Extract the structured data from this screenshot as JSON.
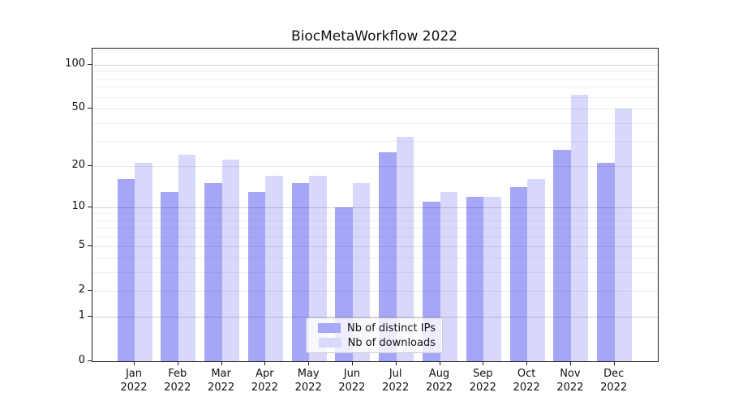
{
  "title": "BiocMetaWorkflow 2022",
  "x_year": "2022",
  "legend": {
    "items": [
      {
        "label": "Nb of distinct IPs",
        "color": "#a8a8f6"
      },
      {
        "label": "Nb of downloads",
        "color": "#d9d9fa"
      }
    ]
  },
  "chart_data": {
    "type": "bar",
    "title": "BiocMetaWorkflow 2022",
    "categories": [
      "Jan 2022",
      "Feb 2022",
      "Mar 2022",
      "Apr 2022",
      "May 2022",
      "Jun 2022",
      "Jul 2022",
      "Aug 2022",
      "Sep 2022",
      "Oct 2022",
      "Nov 2022",
      "Dec 2022"
    ],
    "month_labels": [
      "Jan",
      "Feb",
      "Mar",
      "Apr",
      "May",
      "Jun",
      "Jul",
      "Aug",
      "Sep",
      "Oct",
      "Nov",
      "Dec"
    ],
    "series": [
      {
        "name": "Nb of distinct IPs",
        "swatch_color": "#a8a8f6",
        "fill": "rgba(0,0,230,0.35)",
        "values": [
          16,
          13,
          15,
          13,
          15,
          10,
          25,
          11,
          12,
          14,
          26,
          21
        ]
      },
      {
        "name": "Nb of downloads",
        "swatch_color": "#d9d9fa",
        "fill": "rgba(10,10,225,0.16)",
        "values": [
          21,
          24,
          22,
          17,
          17,
          15,
          32,
          13,
          12,
          16,
          62,
          50
        ]
      }
    ],
    "yscale": "log1p",
    "ylim": [
      0,
      130
    ],
    "yticks": [
      0,
      1,
      2,
      5,
      10,
      20,
      50,
      100
    ],
    "gridlines_major": [
      1,
      10,
      100
    ],
    "gridlines_mid": [
      2,
      5,
      20,
      50
    ],
    "gridlines_minor": [
      3,
      4,
      6,
      7,
      8,
      9,
      30,
      40,
      60,
      70,
      80,
      90
    ],
    "grid": true,
    "legend_position": "lower-center-inside",
    "xlabel": "",
    "ylabel": ""
  }
}
